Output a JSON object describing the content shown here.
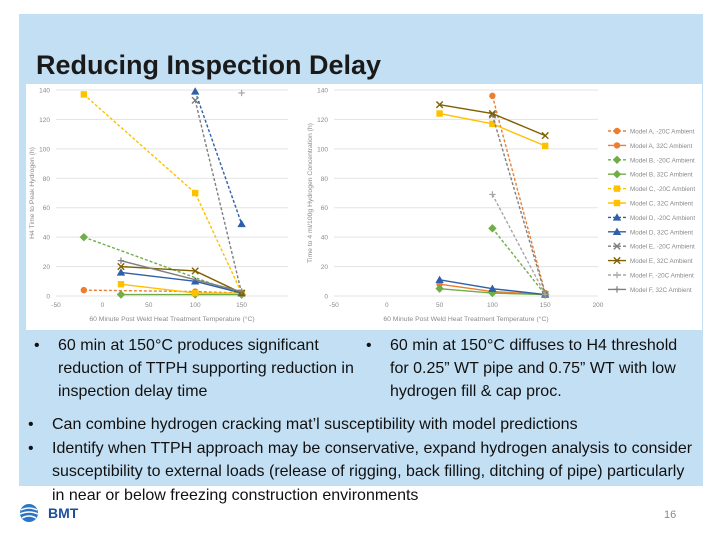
{
  "slide": {
    "title": "Reducing Inspection Delay",
    "page_number": "16",
    "logo_text": "BMT"
  },
  "bullets_top": [
    {
      "text": "60 min at 150°C produces significant reduction of TTPH supporting reduction in inspection delay time"
    },
    {
      "text": "60 min at 150°C diffuses to H4 threshold for 0.25” WT pipe and 0.75” WT with low hydrogen fill & cap proc."
    }
  ],
  "bullets_bottom": [
    {
      "text": "Can combine hydrogen cracking mat’l susceptibility with model predictions"
    },
    {
      "text": "Identify when TTPH approach may be conservative, expand hydrogen analysis to consider susceptibility to external loads (release of rigging, back filling, ditching of pipe) particularly in near or below freezing construction environments"
    }
  ],
  "legend": [
    {
      "label": "Model A, -20C Ambient",
      "color": "#ed7d31",
      "dash": true,
      "marker": "circle"
    },
    {
      "label": "Model A, 32C Ambient",
      "color": "#ed7d31",
      "dash": false,
      "marker": "circle"
    },
    {
      "label": "Model B, -20C Ambient",
      "color": "#70ad47",
      "dash": true,
      "marker": "diamond"
    },
    {
      "label": "Model B, 32C Ambient",
      "color": "#70ad47",
      "dash": false,
      "marker": "diamond"
    },
    {
      "label": "Model C, -20C Ambient",
      "color": "#ffc000",
      "dash": true,
      "marker": "square"
    },
    {
      "label": "Model C, 32C Ambient",
      "color": "#ffc000",
      "dash": false,
      "marker": "square"
    },
    {
      "label": "Model D, -20C Ambient",
      "color": "#2e5fa8",
      "dash": true,
      "marker": "triangle"
    },
    {
      "label": "Model D, 32C Ambient",
      "color": "#2e5fa8",
      "dash": false,
      "marker": "triangle"
    },
    {
      "label": "Model E, -20C Ambient",
      "color": "#7f7f7f",
      "dash": true,
      "marker": "x"
    },
    {
      "label": "Model E, 32C Ambient",
      "color": "#7f6000",
      "dash": false,
      "marker": "x"
    },
    {
      "label": "Model F, -20C Ambient",
      "color": "#a5a5a5",
      "dash": true,
      "marker": "plus"
    },
    {
      "label": "Model F, 32C Ambient",
      "color": "#7f7f7f",
      "dash": false,
      "marker": "plus"
    }
  ],
  "chart_data": [
    {
      "type": "line",
      "title": "",
      "xlabel": "60 Minute Post Weld Heat Treatment Temperature (°C)",
      "ylabel": "H4 Time to Peak Hydrogen (h)",
      "xlim": [
        -50,
        200
      ],
      "ylim": [
        0,
        140
      ],
      "xticks": [
        "-50",
        "0",
        "50",
        "100",
        "150"
      ],
      "yticks": [
        "0",
        "20",
        "40",
        "60",
        "80",
        "100",
        "120",
        "140"
      ],
      "series": [
        {
          "name": "Model A, -20C Ambient",
          "points": [
            [
              -20,
              4
            ],
            [
              100,
              3
            ],
            [
              150,
              2
            ]
          ]
        },
        {
          "name": "Model B, -20C Ambient",
          "points": [
            [
              -20,
              40
            ],
            [
              150,
              1
            ]
          ]
        },
        {
          "name": "Model B, 32C Ambient",
          "points": [
            [
              20,
              1
            ],
            [
              100,
              1
            ],
            [
              150,
              1
            ]
          ]
        },
        {
          "name": "Model C, -20C Ambient",
          "points": [
            [
              -20,
              137
            ],
            [
              100,
              70
            ],
            [
              150,
              2
            ]
          ]
        },
        {
          "name": "Model C, 32C Ambient",
          "points": [
            [
              20,
              8
            ],
            [
              100,
              2
            ],
            [
              150,
              2
            ]
          ]
        },
        {
          "name": "Model D, -20C Ambient",
          "points": [
            [
              100,
              139
            ],
            [
              150,
              49
            ]
          ]
        },
        {
          "name": "Model D, 32C Ambient",
          "points": [
            [
              20,
              16
            ],
            [
              100,
              10
            ],
            [
              150,
              2
            ]
          ]
        },
        {
          "name": "Model E, -20C Ambient",
          "points": [
            [
              100,
              133
            ],
            [
              150,
              2
            ]
          ]
        },
        {
          "name": "Model E, 32C Ambient",
          "points": [
            [
              20,
              20
            ],
            [
              100,
              17
            ],
            [
              150,
              2
            ]
          ]
        },
        {
          "name": "Model F, -20C Ambient",
          "points": [
            [
              150,
              138
            ]
          ]
        },
        {
          "name": "Model F, 32C Ambient",
          "points": [
            [
              20,
              24
            ],
            [
              150,
              3
            ]
          ]
        }
      ]
    },
    {
      "type": "line",
      "title": "",
      "xlabel": "60 Minute Post Weld Heat Treatment Temperature (°C)",
      "ylabel": "Time to 4 ml/100g Hydrogen Concentration (h)",
      "xlim": [
        -50,
        200
      ],
      "ylim": [
        0,
        140
      ],
      "xticks": [
        "-50",
        "0",
        "50",
        "100",
        "150",
        "200"
      ],
      "yticks": [
        "0",
        "20",
        "40",
        "60",
        "80",
        "100",
        "120",
        "140"
      ],
      "series": [
        {
          "name": "Model A, -20C Ambient",
          "points": [
            [
              100,
              136
            ],
            [
              150,
              2
            ]
          ]
        },
        {
          "name": "Model A, 32C Ambient",
          "points": [
            [
              50,
              8
            ],
            [
              100,
              3
            ],
            [
              150,
              1
            ]
          ]
        },
        {
          "name": "Model B, -20C Ambient",
          "points": [
            [
              100,
              46
            ],
            [
              150,
              1
            ]
          ]
        },
        {
          "name": "Model B, 32C Ambient",
          "points": [
            [
              50,
              5
            ],
            [
              100,
              2
            ],
            [
              150,
              1
            ]
          ]
        },
        {
          "name": "Model C, 32C Ambient",
          "points": [
            [
              50,
              124
            ],
            [
              100,
              117
            ],
            [
              150,
              102
            ]
          ]
        },
        {
          "name": "Model D, 32C Ambient",
          "points": [
            [
              50,
              11
            ],
            [
              100,
              5
            ],
            [
              150,
              1
            ]
          ]
        },
        {
          "name": "Model E, -20C Ambient",
          "points": [
            [
              100,
              123
            ],
            [
              150,
              1
            ]
          ]
        },
        {
          "name": "Model E, 32C Ambient",
          "points": [
            [
              50,
              130
            ],
            [
              100,
              124
            ],
            [
              150,
              109
            ]
          ]
        },
        {
          "name": "Model F, -20C Ambient",
          "points": [
            [
              100,
              69
            ],
            [
              150,
              1
            ]
          ]
        }
      ]
    }
  ]
}
